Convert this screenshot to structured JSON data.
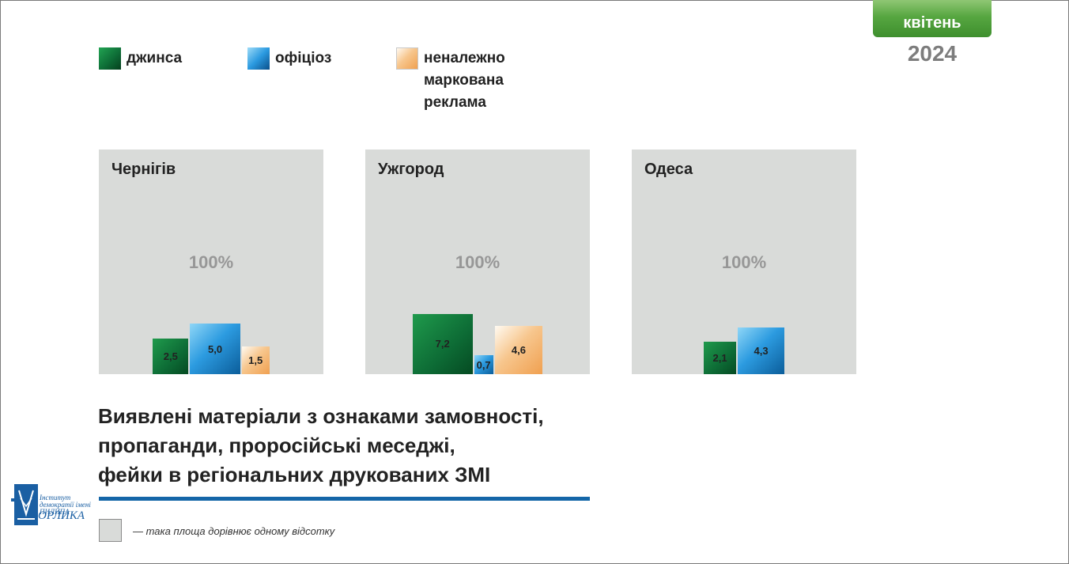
{
  "badge": {
    "month": "квітень",
    "year": "2024"
  },
  "legend": [
    {
      "label": "джинса",
      "color": "#0d6b35"
    },
    {
      "label": "офіціоз",
      "color": "#2c9be0"
    },
    {
      "label": "неналежно\nмаркована\nреклама",
      "color": "#f7c68d"
    }
  ],
  "chart_data": {
    "type": "bar",
    "categories": [
      "джинса",
      "офіціоз",
      "неналежно маркована реклама"
    ],
    "unit": "%",
    "reference_label": "100%",
    "panels": [
      {
        "title": "Чернігів",
        "values": [
          2.5,
          5.0,
          1.5
        ],
        "labels": [
          "2,5",
          "5,0",
          "1,5"
        ]
      },
      {
        "title": "Ужгород",
        "values": [
          7.2,
          0.7,
          4.6
        ],
        "labels": [
          "7,2",
          "0,7",
          "4,6"
        ]
      },
      {
        "title": "Одеса",
        "values": [
          2.1,
          4.3,
          null
        ],
        "labels": [
          "2,1",
          "4,3",
          ""
        ]
      }
    ]
  },
  "headline": "Виявлені матеріали з ознаками замовності,\nпропаганди, проросійські меседжі,\nфейки в регіональних друкованих ЗМІ",
  "logo": {
    "line1": "Інститут демократії імені ПИЛИПА",
    "line2": "ОРЛИКА"
  },
  "note": "— така площа дорівнює одному відсотку"
}
